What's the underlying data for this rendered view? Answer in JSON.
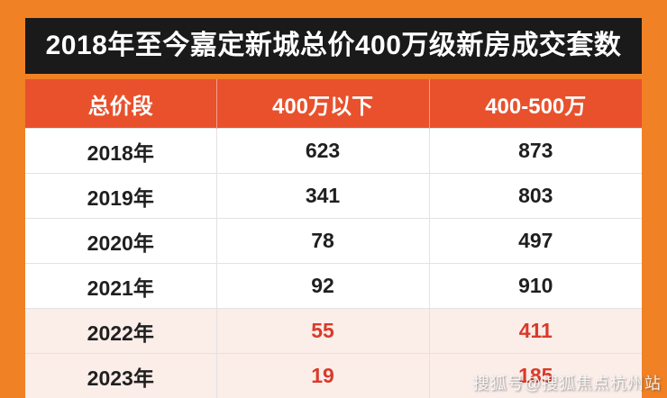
{
  "title": "2018年至今嘉定新城总价400万级新房成交套数",
  "watermark": "搜狐号@搜狐焦点杭州站",
  "colors": {
    "page_background": "#F08125",
    "title_background": "#1A1A1A",
    "title_text": "#FFFFFF",
    "header_background": "#E8512C",
    "header_text": "#FFFFFF",
    "body_text": "#1F1F1F",
    "highlight_row_background": "#FBEDE8",
    "highlight_number_text": "#D93A2A"
  },
  "chart_data": {
    "type": "table",
    "title": "2018年至今嘉定新城总价400万级新房成交套数",
    "columns": [
      "总价段",
      "400万以下",
      "400-500万"
    ],
    "rows": [
      {
        "year": "2018年",
        "under_400": "623",
        "between_400_500": "873",
        "highlight": false
      },
      {
        "year": "2019年",
        "under_400": "341",
        "between_400_500": "803",
        "highlight": false
      },
      {
        "year": "2020年",
        "under_400": "78",
        "between_400_500": "497",
        "highlight": false
      },
      {
        "year": "2021年",
        "under_400": "92",
        "between_400_500": "910",
        "highlight": false
      },
      {
        "year": "2022年",
        "under_400": "55",
        "between_400_500": "411",
        "highlight": true
      },
      {
        "year": "2023年",
        "under_400": "19",
        "between_400_500": "185",
        "highlight": true
      }
    ]
  }
}
